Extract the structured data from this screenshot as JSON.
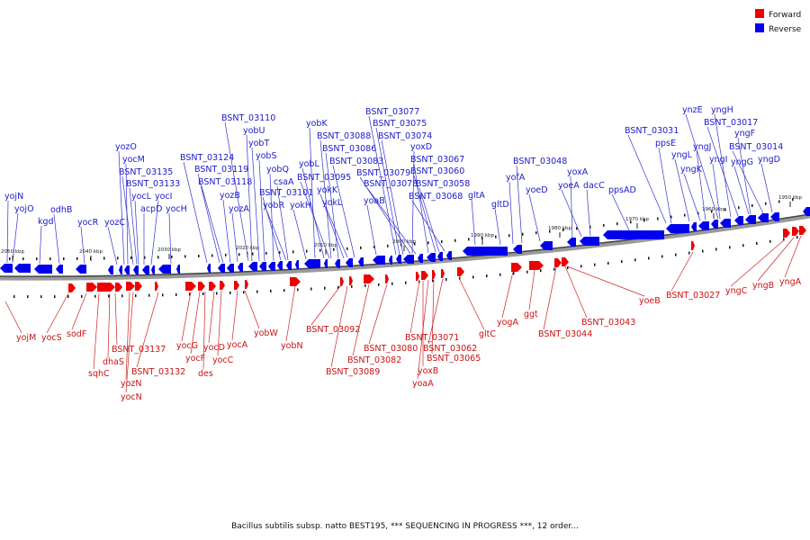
{
  "legend": {
    "forward_label": "Forward",
    "reverse_label": "Reverse",
    "forward_color": "#ee0000",
    "reverse_color": "#0000ee"
  },
  "caption": "Bacillus subtilis subsp. natto BEST195, *** SEQUENCING IN PROGRESS ***, 12 order...",
  "ticks": [
    "2050 kbp",
    "2040 kbp",
    "2030 kbp",
    "2020 kbp",
    "2010 kbp",
    "2000 kbp",
    "1990 kbp",
    "1980 kbp",
    "1970 kbp",
    "1960 kbp",
    "1950 kbp"
  ],
  "reverse_labels": [
    "yojN",
    "yojO",
    "kgd",
    "odhB",
    "yocR",
    "yozC",
    "yozO",
    "yocM",
    "BSNT_03135",
    "BSNT_03133",
    "yocL",
    "acpD",
    "yocI",
    "yocH",
    "BSNT_03124",
    "BSNT_03119",
    "BSNT_03118",
    "yozB",
    "yozA",
    "BSNT_03110",
    "yobU",
    "yobT",
    "yobS",
    "yobQ",
    "BSNT_03101",
    "yobR",
    "csaA",
    "yokH",
    "yobK",
    "yobL",
    "BSNT_03095",
    "BSNT_03088",
    "BSNT_03086",
    "yokK",
    "yokL",
    "BSNT_03083",
    "BSNT_03077",
    "BSNT_03075",
    "BSNT_03074",
    "yoxD",
    "BSNT_03079",
    "BSNT_03078",
    "BSNT_03067",
    "BSNT_03060",
    "BSNT_03058",
    "BSNT_03068",
    "yoaB",
    "gltA",
    "gltD",
    "yofA",
    "BSNT_03048",
    "yoeD",
    "yoxA",
    "yoeA",
    "dacC",
    "ppsAD",
    "BSNT_03031",
    "ppsE",
    "yngL",
    "yngJ",
    "yngK",
    "ynzE",
    "yngI",
    "yngH",
    "BSNT_03017",
    "yngF",
    "yngG",
    "BSNT_03014",
    "yngD"
  ],
  "forward_labels": [
    "yojM",
    "yocS",
    "sodF",
    "sqhC",
    "dhaS",
    "BSNT_03137",
    "yozN",
    "yocN",
    "BSNT_03132",
    "yocG",
    "yocF",
    "des",
    "yocD",
    "yocC",
    "yocA",
    "yobW",
    "yobN",
    "BSNT_03092",
    "BSNT_03089",
    "BSNT_03082",
    "BSNT_03080",
    "BSNT_03071",
    "yoxB",
    "yoaA",
    "BSNT_03065",
    "BSNT_03062",
    "gltC",
    "yogA",
    "ggt",
    "BSNT_03044",
    "BSNT_03043",
    "yoeB",
    "BSNT_03027",
    "yngC",
    "yngB",
    "yngA"
  ]
}
